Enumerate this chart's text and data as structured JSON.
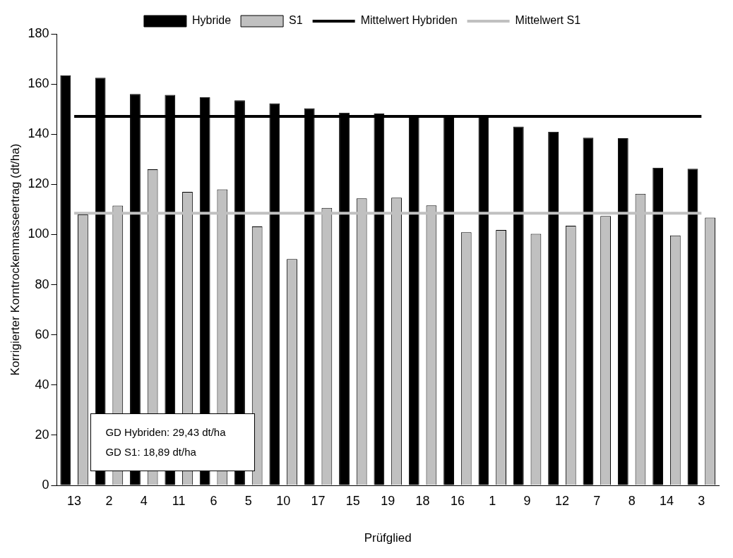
{
  "chart_data": {
    "type": "bar",
    "xlabel": "Prüfglied",
    "ylabel": "Korrigierter Korntrockenmasseertrag (dt/ha)",
    "categories": [
      "13",
      "2",
      "4",
      "11",
      "6",
      "5",
      "10",
      "17",
      "15",
      "19",
      "18",
      "16",
      "1",
      "9",
      "12",
      "7",
      "8",
      "14",
      "3"
    ],
    "series": [
      {
        "name": "Hybride",
        "color": "#000000",
        "values": [
          163.5,
          162.5,
          156,
          155.7,
          154.7,
          153.5,
          152.3,
          150.3,
          148.6,
          148.2,
          147.5,
          147.4,
          147.3,
          143,
          141,
          138.6,
          138.4,
          126.6,
          126.2
        ]
      },
      {
        "name": "S1",
        "color": "#c0c0c0",
        "values": [
          108,
          111.5,
          126,
          117,
          118,
          103.2,
          90.2,
          110.6,
          114.4,
          114.7,
          111.6,
          100.9,
          101.8,
          100.3,
          103.5,
          107.4,
          116.2,
          99.6,
          106.7
        ]
      },
      {
        "name": "Mittelwert Hybriden",
        "type": "line",
        "color": "#000000",
        "values": [
          147.1,
          147.1,
          147.1,
          147.1,
          147.1,
          147.1,
          147.1,
          147.1,
          147.1,
          147.1,
          147.1,
          147.1,
          147.1,
          147.1,
          147.1,
          147.1,
          147.1,
          147.1,
          147.1
        ]
      },
      {
        "name": "Mittelwert S1",
        "type": "line",
        "color": "#c0c0c0",
        "values": [
          108.5,
          108.5,
          108.5,
          108.5,
          108.5,
          108.5,
          108.5,
          108.5,
          108.5,
          108.5,
          108.5,
          108.5,
          108.5,
          108.5,
          108.5,
          108.5,
          108.5,
          108.5,
          108.5
        ]
      }
    ],
    "ylim": [
      0,
      180
    ],
    "yticks": [
      0,
      20,
      40,
      60,
      80,
      100,
      120,
      140,
      160,
      180
    ],
    "grid": false,
    "legend": "top",
    "marker": "none",
    "annotations": [
      "GD Hybriden: 29,43 dt/ha",
      "GD S1: 18,89 dt/ha"
    ]
  }
}
